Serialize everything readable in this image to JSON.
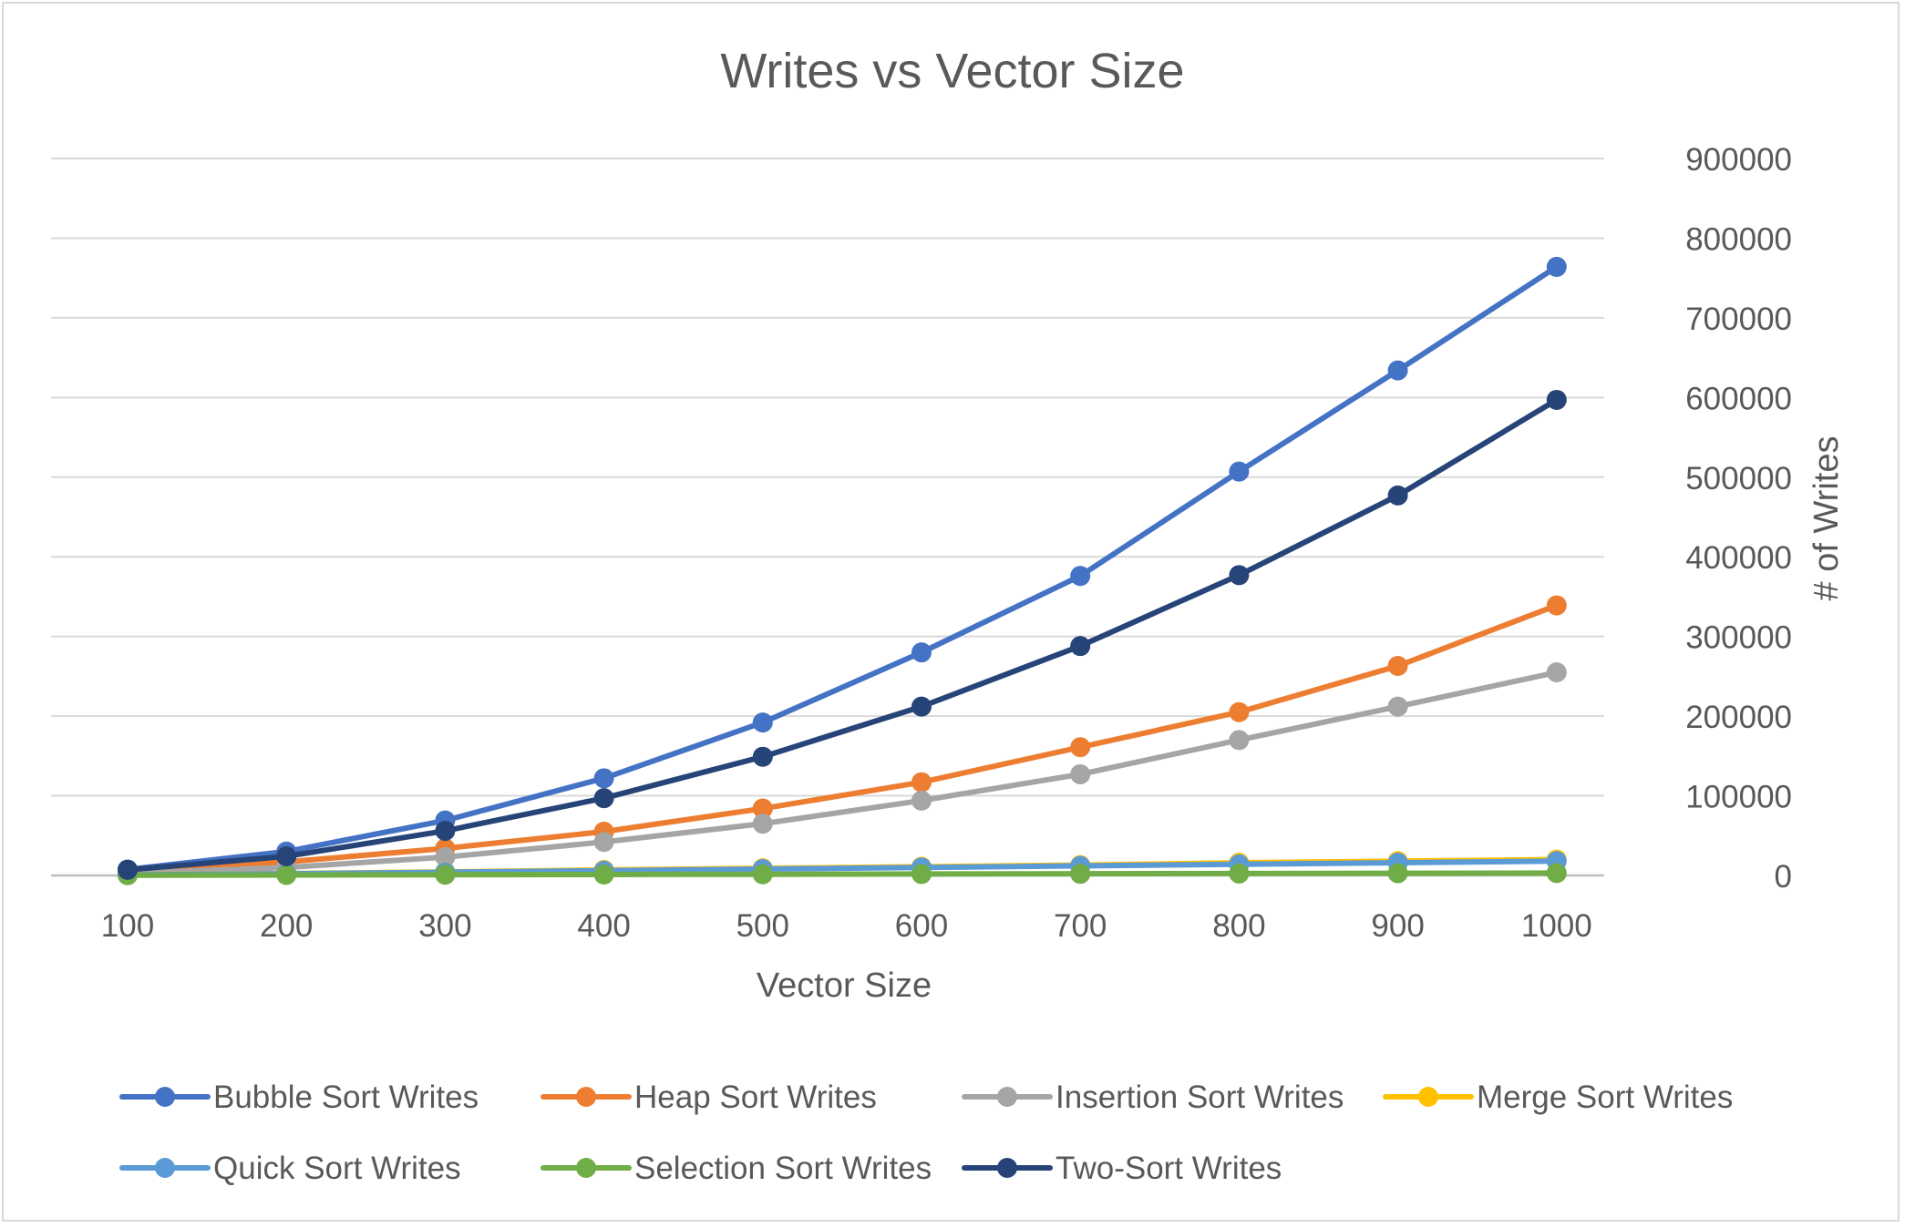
{
  "chart_data": {
    "type": "line",
    "title": "Writes vs Vector Size",
    "xlabel": "Vector Size",
    "ylabel": "# of Writes",
    "categories": [
      "100",
      "200",
      "300",
      "400",
      "500",
      "600",
      "700",
      "800",
      "900",
      "1000"
    ],
    "y_ticks": [
      "0",
      "100000",
      "200000",
      "300000",
      "400000",
      "500000",
      "600000",
      "700000",
      "800000",
      "900000"
    ],
    "ylim": [
      0,
      900000
    ],
    "y_axis_side": "right",
    "grid": true,
    "legend_position": "bottom",
    "series": [
      {
        "name": "Bubble Sort Writes",
        "color": "#4472C4",
        "values": [
          7500,
          30000,
          69000,
          122000,
          192000,
          280000,
          376000,
          507000,
          634000,
          764000
        ]
      },
      {
        "name": "Heap Sort Writes",
        "color": "#ED7D31",
        "values": [
          3500,
          17000,
          34000,
          55000,
          84000,
          117000,
          161000,
          205000,
          263000,
          339000
        ]
      },
      {
        "name": "Insertion Sort Writes",
        "color": "#A5A5A5",
        "values": [
          2500,
          10000,
          23000,
          42000,
          65000,
          94000,
          127000,
          170000,
          212000,
          255000
        ]
      },
      {
        "name": "Merge Sort Writes",
        "color": "#FFC000",
        "values": [
          1000,
          2500,
          4500,
          7000,
          9000,
          11000,
          13000,
          16000,
          18000,
          20000
        ]
      },
      {
        "name": "Quick Sort Writes",
        "color": "#5B9BD5",
        "values": [
          900,
          2200,
          4000,
          6000,
          8000,
          10000,
          12000,
          14000,
          16000,
          18000
        ]
      },
      {
        "name": "Selection Sort Writes",
        "color": "#70AD47",
        "values": [
          300,
          600,
          900,
          1200,
          1500,
          1800,
          2100,
          2400,
          2700,
          3000
        ]
      },
      {
        "name": "Two-Sort Writes",
        "color": "#264478",
        "values": [
          7000,
          24000,
          56000,
          97000,
          149000,
          212000,
          288000,
          377000,
          477000,
          597000
        ]
      }
    ]
  }
}
